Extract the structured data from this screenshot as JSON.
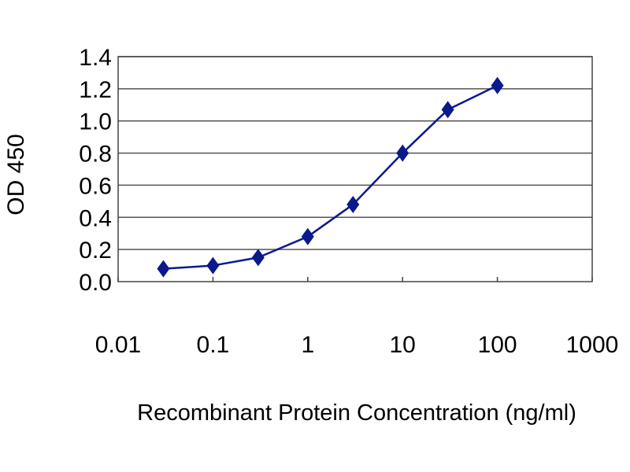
{
  "chart_data": {
    "type": "line",
    "title": "",
    "xlabel": "Recombinant Protein Concentration (ng/ml)",
    "ylabel": "OD 450",
    "x_scale": "log",
    "xlim": [
      0.01,
      1000
    ],
    "ylim": [
      0,
      1.4
    ],
    "x_ticks": [
      "0.01",
      "0.1",
      "1",
      "10",
      "100",
      "1000"
    ],
    "x_tick_values": [
      0.01,
      0.1,
      1,
      10,
      100,
      1000
    ],
    "y_ticks": [
      "0.0",
      "0.2",
      "0.4",
      "0.6",
      "0.8",
      "1.0",
      "1.2",
      "1.4"
    ],
    "y_tick_values": [
      0,
      0.2,
      0.4,
      0.6,
      0.8,
      1.0,
      1.2,
      1.4
    ],
    "grid": "horizontal",
    "legend": "none",
    "series": [
      {
        "color": "#0a1a8c",
        "marker": "diamond",
        "x": [
          0.03,
          0.1,
          0.3,
          1,
          3,
          10,
          30,
          100
        ],
        "y": [
          0.08,
          0.1,
          0.15,
          0.28,
          0.48,
          0.8,
          1.07,
          1.22
        ]
      }
    ]
  }
}
